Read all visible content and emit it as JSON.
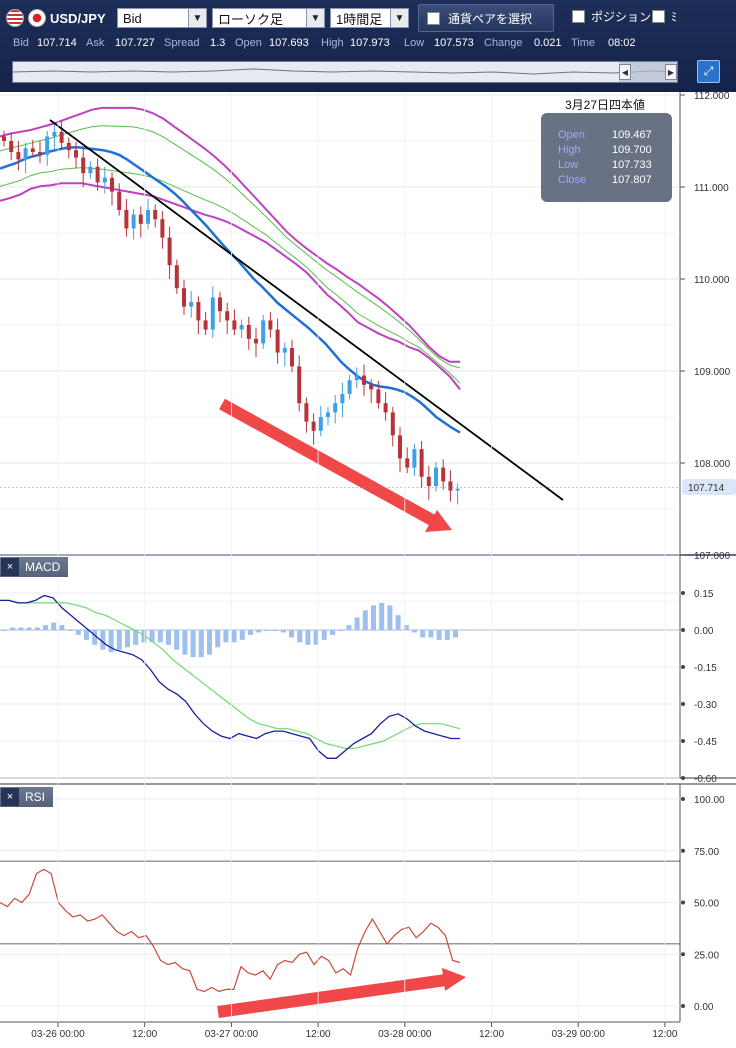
{
  "toolbar": {
    "pair": "USD/JPY",
    "price_type": "Bid",
    "chart_type": "ローソク足",
    "timeframe": "1時間足",
    "select_pair_button": "通貨ペアを選択",
    "position_label": "ポジション",
    "position2_label": "ﾐ"
  },
  "quote": {
    "bid_label": "Bid",
    "bid": "107.714",
    "ask_label": "Ask",
    "ask": "107.727",
    "spread_label": "Spread",
    "spread": "1.3",
    "open_label": "Open",
    "open": "107.693",
    "high_label": "High",
    "high": "107.973",
    "low_label": "Low",
    "low": "107.573",
    "change_label": "Change",
    "change": "0.021",
    "time_label": "Time",
    "time": "08:02"
  },
  "ohlc_box": {
    "title": "3月27日四本値",
    "rows": [
      {
        "key": "Open",
        "value": "109.467"
      },
      {
        "key": "High",
        "value": "109.700"
      },
      {
        "key": "Low",
        "value": "107.733"
      },
      {
        "key": "Close",
        "value": "107.807"
      }
    ]
  },
  "panels": {
    "macd_label": "MACD",
    "rsi_label": "RSI",
    "close_icon": "×"
  },
  "colors": {
    "bull": "#3fa0e6",
    "bear": "#b8323a",
    "ma": "#1f6fd8",
    "bb_inner": "#55c04a",
    "bb_outer": "#c03fc0",
    "trend": "#000000",
    "arrow": "#f04848",
    "macd_line": "#1a1fa0",
    "signal_line": "#6edc6e",
    "hist": "#9dc0ee",
    "rsi": "#c84a3a"
  },
  "chart_data": [
    {
      "type": "candlestick",
      "title": "",
      "x_ticks": [
        "03-26 00:00",
        "12:00",
        "03-27 00:00",
        "12:00",
        "03-28 00:00",
        "12:00",
        "03-29 00:00",
        "12:00"
      ],
      "y_ticks": [
        "112.000",
        "111.000",
        "110.000",
        "109.000",
        "108.000",
        "107.000"
      ],
      "ylim": [
        107.0,
        112.0
      ],
      "current_price": "107.714",
      "close": [
        111.5,
        111.38,
        111.3,
        111.42,
        111.38,
        111.35,
        111.55,
        111.6,
        111.48,
        111.4,
        111.32,
        111.15,
        111.22,
        111.05,
        111.1,
        110.95,
        110.75,
        110.55,
        110.7,
        110.6,
        110.75,
        110.65,
        110.45,
        110.15,
        109.9,
        109.7,
        109.75,
        109.55,
        109.45,
        109.8,
        109.65,
        109.55,
        109.45,
        109.5,
        109.35,
        109.3,
        109.55,
        109.45,
        109.2,
        109.25,
        109.05,
        108.65,
        108.45,
        108.35,
        108.5,
        108.55,
        108.65,
        108.75,
        108.9,
        108.95,
        108.85,
        108.8,
        108.65,
        108.55,
        108.3,
        108.05,
        107.95,
        108.15,
        107.85,
        107.75,
        107.95,
        107.8,
        107.7,
        107.72
      ],
      "indicators": {
        "ma": [
          111.2,
          111.23,
          111.26,
          111.3,
          111.33,
          111.35,
          111.38,
          111.4,
          111.42,
          111.43,
          111.43,
          111.42,
          111.41,
          111.4,
          111.38,
          111.35,
          111.3,
          111.24,
          111.18,
          111.12,
          111.06,
          111.0,
          110.93,
          110.85,
          110.76,
          110.67,
          110.58,
          110.48,
          110.38,
          110.29,
          110.2,
          110.1,
          110.0,
          109.92,
          109.83,
          109.74,
          109.67,
          109.6,
          109.53,
          109.46,
          109.38,
          109.3,
          109.2,
          109.1,
          109.02,
          108.95,
          108.89,
          108.85,
          108.83,
          108.82,
          108.8,
          108.77,
          108.72,
          108.66,
          108.58,
          108.5,
          108.44,
          108.38,
          108.33
        ],
        "bb_upper": [
          111.55,
          111.58,
          111.6,
          111.62,
          111.65,
          111.68,
          111.72,
          111.76,
          111.8,
          111.84,
          111.86,
          111.86,
          111.86,
          111.86,
          111.84,
          111.8,
          111.74,
          111.66,
          111.58,
          111.5,
          111.42,
          111.33,
          111.23,
          111.12,
          111.0,
          110.88,
          110.76,
          110.64,
          110.52,
          110.42,
          110.33,
          110.25,
          110.17,
          110.1,
          110.02,
          109.95,
          109.87,
          109.79,
          109.7,
          109.6,
          109.5,
          109.38,
          109.26,
          109.16,
          109.1,
          109.1
        ]
      }
    },
    {
      "type": "line",
      "title": "",
      "y_ticks": [
        "0.15",
        "0.00",
        "-0.15",
        "-0.30",
        "-0.45",
        "-0.60"
      ],
      "ylim": [
        -0.6,
        0.15
      ],
      "series": [
        {
          "values": [
            0.12,
            0.12,
            0.11,
            0.11,
            0.12,
            0.14,
            0.13,
            0.09,
            0.06,
            0.03,
            0.0,
            -0.03,
            -0.06,
            -0.08,
            -0.09,
            -0.1,
            -0.12,
            -0.16,
            -0.21,
            -0.24,
            -0.26,
            -0.29,
            -0.34,
            -0.38,
            -0.41,
            -0.43,
            -0.44,
            -0.42,
            -0.43,
            -0.44,
            -0.42,
            -0.41,
            -0.41,
            -0.42,
            -0.43,
            -0.44,
            -0.49,
            -0.52,
            -0.52,
            -0.49,
            -0.46,
            -0.44,
            -0.42,
            -0.38,
            -0.35,
            -0.34,
            -0.36,
            -0.39,
            -0.41,
            -0.42,
            -0.43,
            -0.44,
            -0.44
          ]
        },
        {
          "values": [
            0.12,
            0.12,
            0.11,
            0.11,
            0.11,
            0.11,
            0.11,
            0.11,
            0.1,
            0.09,
            0.07,
            0.06,
            0.04,
            0.02,
            0.0,
            -0.02,
            -0.05,
            -0.08,
            -0.12,
            -0.15,
            -0.18,
            -0.21,
            -0.24,
            -0.27,
            -0.3,
            -0.33,
            -0.36,
            -0.38,
            -0.39,
            -0.4,
            -0.4,
            -0.41,
            -0.42,
            -0.44,
            -0.46,
            -0.47,
            -0.48,
            -0.48,
            -0.47,
            -0.46,
            -0.45,
            -0.43,
            -0.41,
            -0.39,
            -0.38,
            -0.38,
            -0.38,
            -0.39,
            -0.4
          ]
        }
      ],
      "histogram": [
        0.0,
        0.01,
        0.01,
        0.01,
        0.01,
        0.02,
        0.03,
        0.02,
        0.0,
        -0.02,
        -0.04,
        -0.06,
        -0.08,
        -0.09,
        -0.08,
        -0.07,
        -0.06,
        -0.05,
        -0.05,
        -0.05,
        -0.06,
        -0.08,
        -0.1,
        -0.11,
        -0.11,
        -0.1,
        -0.07,
        -0.05,
        -0.05,
        -0.04,
        -0.02,
        -0.01,
        0.0,
        0.0,
        -0.01,
        -0.03,
        -0.05,
        -0.06,
        -0.06,
        -0.04,
        -0.02,
        0.0,
        0.02,
        0.05,
        0.08,
        0.1,
        0.11,
        0.1,
        0.06,
        0.02,
        -0.01,
        -0.03,
        -0.03,
        -0.04,
        -0.04,
        -0.03
      ]
    },
    {
      "type": "line",
      "title": "",
      "y_ticks": [
        "100.00",
        "75.00",
        "50.00",
        "25.00",
        "0.00"
      ],
      "ylim": [
        0,
        100
      ],
      "levels": [
        70,
        30
      ],
      "values": [
        50,
        48,
        52,
        50,
        54,
        64,
        66,
        64,
        50,
        46,
        43,
        44,
        41,
        42,
        44,
        40,
        36,
        34,
        36,
        33,
        34,
        29,
        22,
        20,
        21,
        18,
        17,
        8,
        7,
        9,
        7,
        8,
        8,
        19,
        16,
        15,
        17,
        13,
        20,
        22,
        21,
        25,
        26,
        20,
        24,
        22,
        16,
        18,
        15,
        28,
        36,
        42,
        36,
        30,
        34,
        37,
        38,
        33,
        36,
        40,
        38,
        34,
        22,
        21
      ]
    }
  ]
}
